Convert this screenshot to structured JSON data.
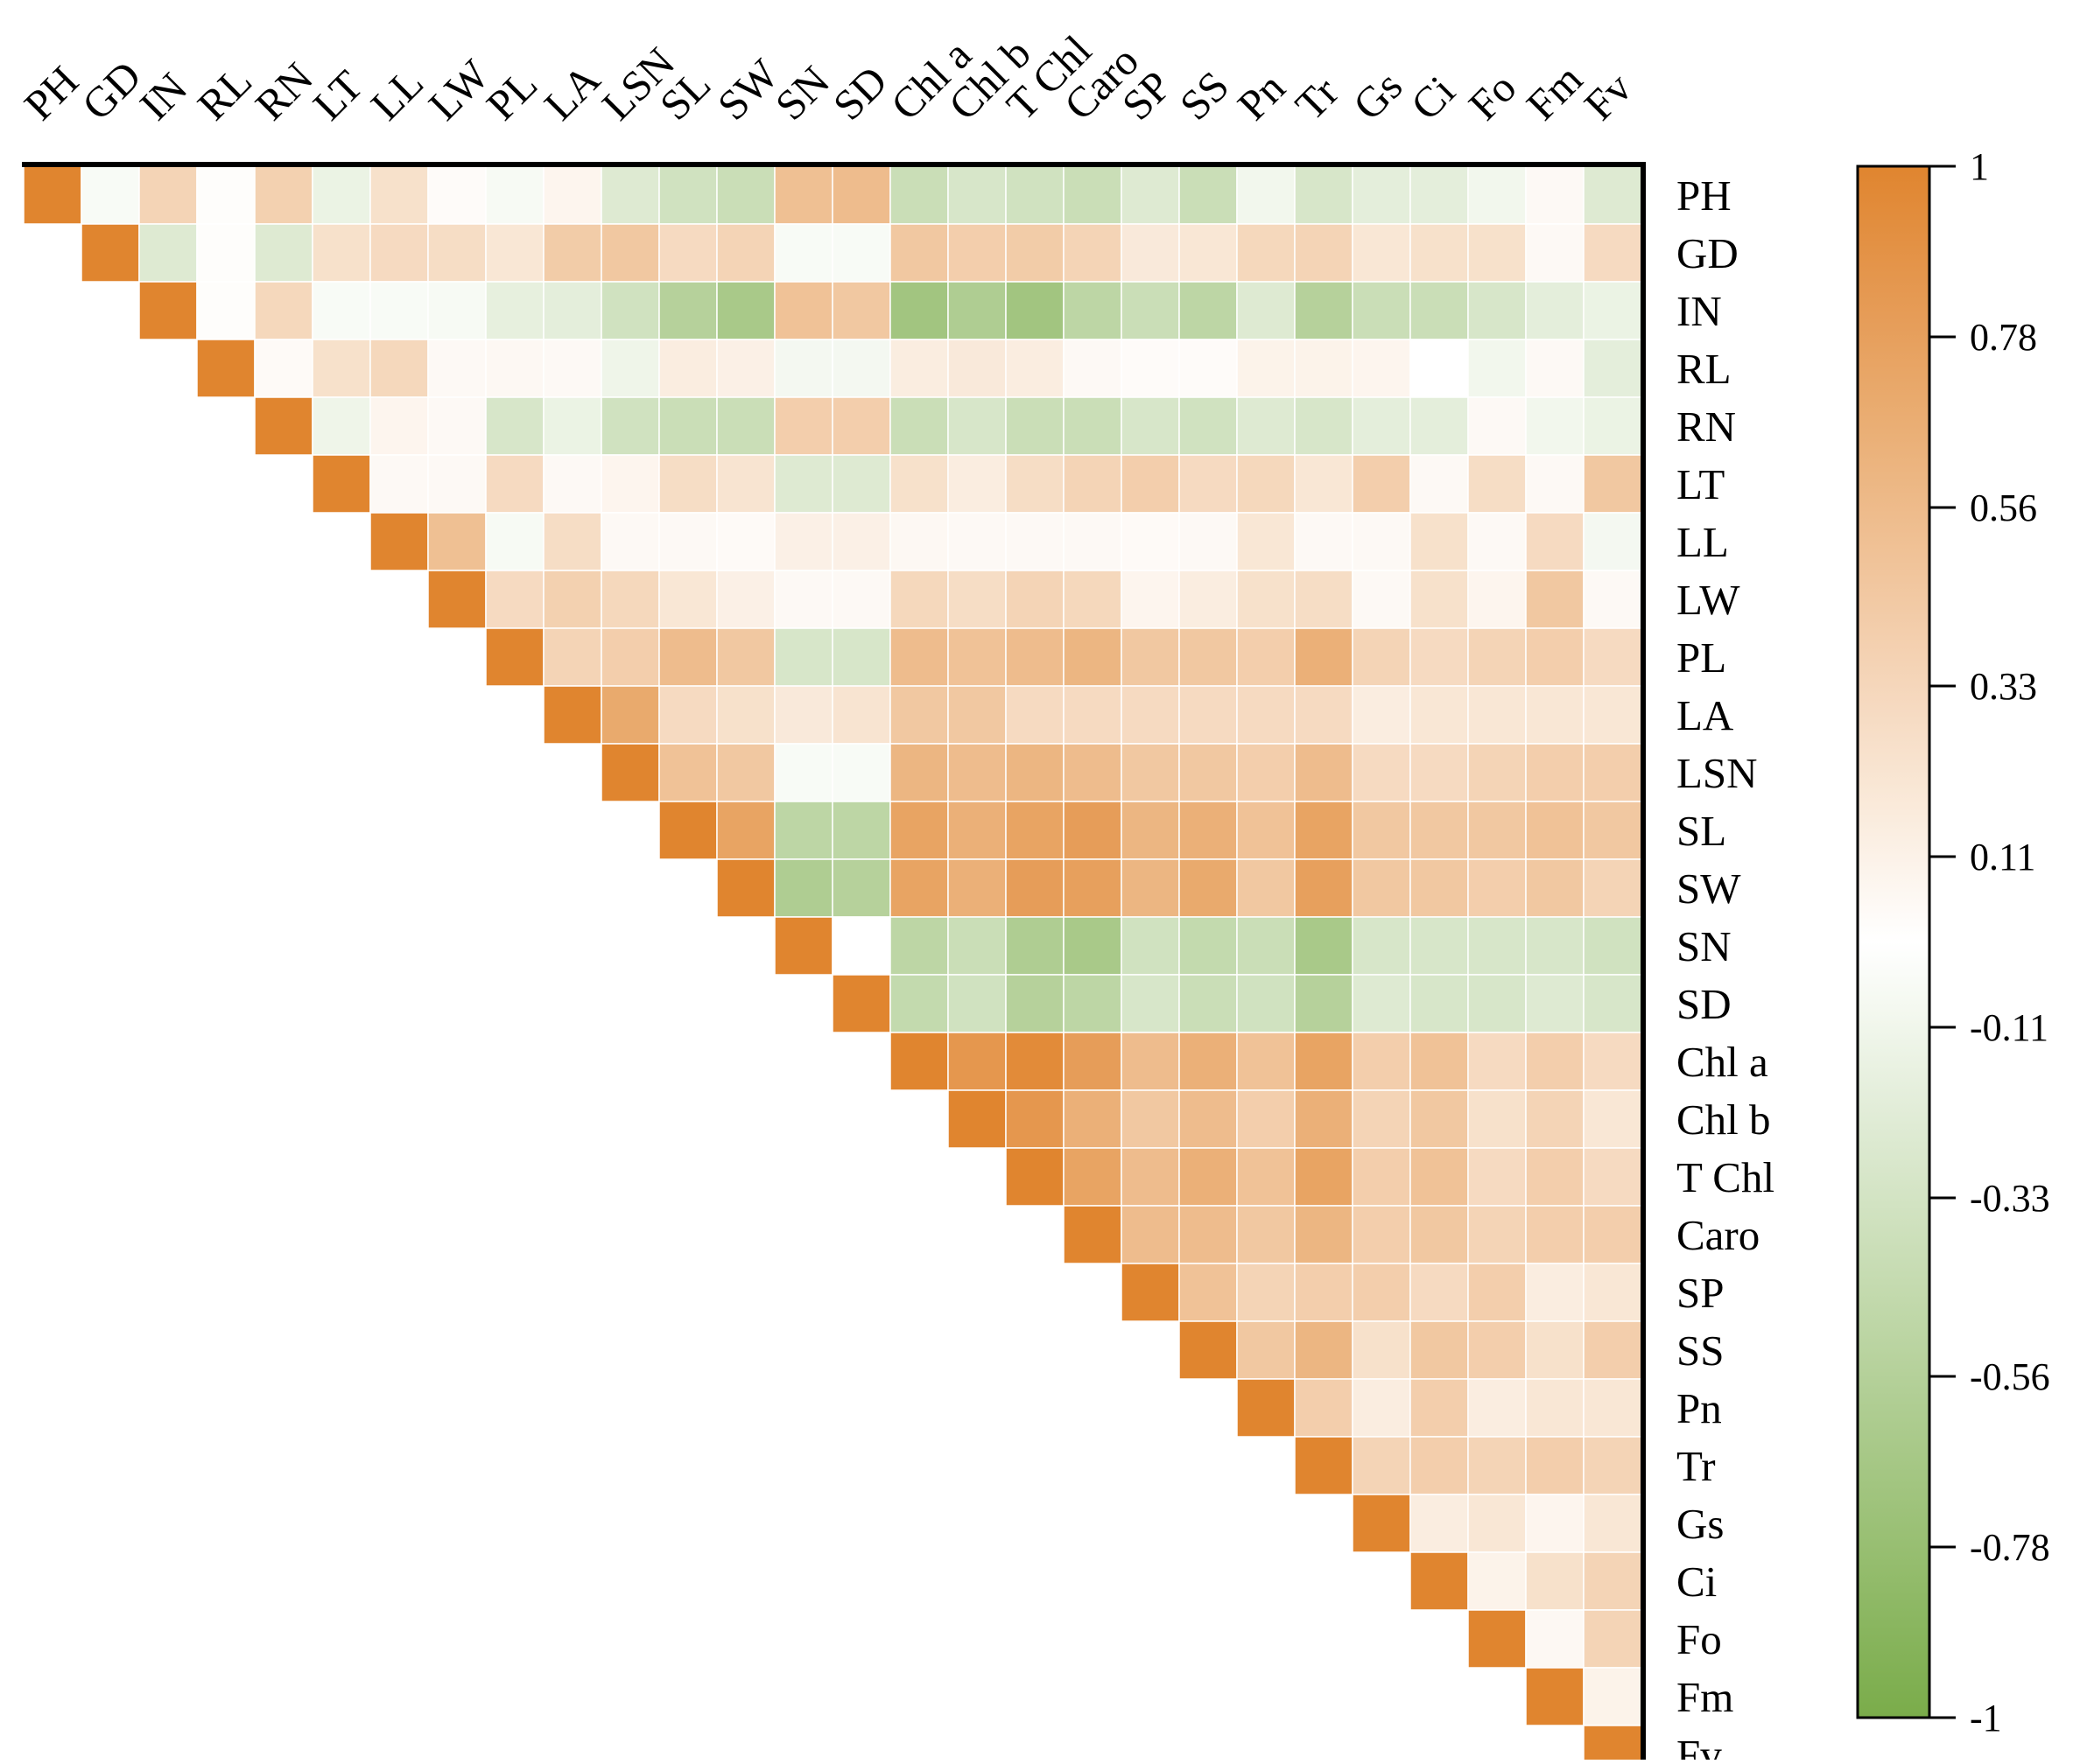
{
  "chart_data": {
    "type": "heatmap",
    "title": "",
    "variables": [
      "PH",
      "GD",
      "IN",
      "RL",
      "RN",
      "LT",
      "LL",
      "LW",
      "PL",
      "LA",
      "LSN",
      "SL",
      "SW",
      "SN",
      "SD",
      "Chl a",
      "Chl b",
      "T Chl",
      "Caro",
      "SP",
      "SS",
      "Pn",
      "Tr",
      "Gs",
      "Ci",
      "Fo",
      "Fm",
      "Fv"
    ],
    "matrix_shape": "upper-triangle",
    "values": [
      [
        1.0,
        -0.05,
        0.35,
        0.02,
        0.38,
        -0.15,
        0.25,
        0.03,
        -0.06,
        0.08,
        -0.25,
        -0.35,
        -0.4,
        0.52,
        0.55,
        -0.4,
        -0.3,
        -0.35,
        -0.4,
        -0.25,
        -0.4,
        -0.1,
        -0.3,
        -0.2,
        -0.2,
        -0.1,
        0.05,
        -0.25
      ],
      [
        null,
        1.0,
        -0.25,
        0.02,
        -0.25,
        0.25,
        0.3,
        0.28,
        0.2,
        0.42,
        0.45,
        0.3,
        0.35,
        -0.05,
        -0.05,
        0.45,
        0.4,
        0.42,
        0.35,
        0.18,
        0.2,
        0.32,
        0.35,
        0.2,
        0.25,
        0.25,
        0.05,
        0.3
      ],
      [
        null,
        null,
        1.0,
        0.02,
        0.32,
        -0.05,
        -0.05,
        -0.06,
        -0.18,
        -0.2,
        -0.35,
        -0.55,
        -0.65,
        0.5,
        0.45,
        -0.7,
        -0.6,
        -0.7,
        -0.5,
        -0.4,
        -0.5,
        -0.25,
        -0.55,
        -0.4,
        -0.4,
        -0.3,
        -0.2,
        -0.15
      ],
      [
        null,
        null,
        null,
        1.0,
        0.04,
        0.25,
        0.32,
        0.05,
        0.06,
        0.05,
        -0.12,
        0.15,
        0.12,
        -0.08,
        -0.08,
        0.15,
        0.18,
        0.15,
        0.05,
        0.03,
        0.03,
        0.1,
        0.1,
        0.08,
        0.0,
        -0.1,
        0.05,
        -0.2
      ],
      [
        null,
        null,
        null,
        null,
        1.0,
        -0.12,
        0.08,
        0.05,
        -0.3,
        -0.15,
        -0.35,
        -0.4,
        -0.4,
        0.4,
        0.4,
        -0.4,
        -0.3,
        -0.4,
        -0.4,
        -0.3,
        -0.35,
        -0.25,
        -0.3,
        -0.2,
        -0.2,
        0.05,
        -0.1,
        -0.15
      ],
      [
        null,
        null,
        null,
        null,
        null,
        1.0,
        0.05,
        0.05,
        0.3,
        0.05,
        0.08,
        0.28,
        0.22,
        -0.25,
        -0.25,
        0.25,
        0.15,
        0.28,
        0.35,
        0.4,
        0.3,
        0.32,
        0.2,
        0.4,
        0.05,
        0.28,
        0.05,
        0.45
      ],
      [
        null,
        null,
        null,
        null,
        null,
        null,
        1.0,
        0.52,
        -0.06,
        0.28,
        0.05,
        0.05,
        0.04,
        0.12,
        0.12,
        0.06,
        0.05,
        0.05,
        0.05,
        0.04,
        0.05,
        0.2,
        0.05,
        0.05,
        0.25,
        0.05,
        0.3,
        -0.08
      ],
      [
        null,
        null,
        null,
        null,
        null,
        null,
        null,
        1.0,
        0.3,
        0.38,
        0.32,
        0.2,
        0.12,
        0.05,
        0.05,
        0.32,
        0.28,
        0.35,
        0.32,
        0.08,
        0.15,
        0.25,
        0.28,
        0.05,
        0.25,
        0.08,
        0.45,
        0.05
      ],
      [
        null,
        null,
        null,
        null,
        null,
        null,
        null,
        null,
        1.0,
        0.35,
        0.4,
        0.55,
        0.45,
        -0.3,
        -0.3,
        0.55,
        0.5,
        0.55,
        0.6,
        0.45,
        0.45,
        0.4,
        0.65,
        0.35,
        0.3,
        0.35,
        0.4,
        0.3
      ],
      [
        null,
        null,
        null,
        null,
        null,
        null,
        null,
        null,
        null,
        1.0,
        0.7,
        0.3,
        0.25,
        0.18,
        0.22,
        0.45,
        0.45,
        0.3,
        0.3,
        0.3,
        0.3,
        0.3,
        0.3,
        0.15,
        0.2,
        0.2,
        0.2,
        0.2
      ],
      [
        null,
        null,
        null,
        null,
        null,
        null,
        null,
        null,
        null,
        null,
        1.0,
        0.5,
        0.45,
        -0.05,
        -0.05,
        0.6,
        0.55,
        0.6,
        0.55,
        0.45,
        0.45,
        0.4,
        0.55,
        0.3,
        0.3,
        0.35,
        0.4,
        0.4
      ],
      [
        null,
        null,
        null,
        null,
        null,
        null,
        null,
        null,
        null,
        null,
        null,
        1.0,
        0.75,
        -0.5,
        -0.5,
        0.75,
        0.65,
        0.75,
        0.8,
        0.6,
        0.65,
        0.5,
        0.75,
        0.45,
        0.45,
        0.45,
        0.5,
        0.45
      ],
      [
        null,
        null,
        null,
        null,
        null,
        null,
        null,
        null,
        null,
        null,
        null,
        null,
        1.0,
        -0.6,
        -0.55,
        0.75,
        0.65,
        0.8,
        0.78,
        0.6,
        0.7,
        0.45,
        0.78,
        0.45,
        0.45,
        0.4,
        0.45,
        0.35
      ],
      [
        null,
        null,
        null,
        null,
        null,
        null,
        null,
        null,
        null,
        null,
        null,
        null,
        null,
        1.0,
        0.0,
        -0.5,
        -0.4,
        -0.6,
        -0.65,
        -0.35,
        -0.45,
        -0.4,
        -0.65,
        -0.3,
        -0.3,
        -0.3,
        -0.3,
        -0.35
      ],
      [
        null,
        null,
        null,
        null,
        null,
        null,
        null,
        null,
        null,
        null,
        null,
        null,
        null,
        null,
        1.0,
        -0.45,
        -0.35,
        -0.55,
        -0.5,
        -0.3,
        -0.4,
        -0.35,
        -0.55,
        -0.25,
        -0.3,
        -0.3,
        -0.25,
        -0.3
      ],
      [
        null,
        null,
        null,
        null,
        null,
        null,
        null,
        null,
        null,
        null,
        null,
        null,
        null,
        null,
        null,
        1.0,
        0.85,
        0.95,
        0.8,
        0.55,
        0.65,
        0.5,
        0.75,
        0.4,
        0.5,
        0.3,
        0.4,
        0.3
      ],
      [
        null,
        null,
        null,
        null,
        null,
        null,
        null,
        null,
        null,
        null,
        null,
        null,
        null,
        null,
        null,
        null,
        1.0,
        0.85,
        0.65,
        0.45,
        0.55,
        0.4,
        0.65,
        0.35,
        0.45,
        0.25,
        0.35,
        0.2
      ],
      [
        null,
        null,
        null,
        null,
        null,
        null,
        null,
        null,
        null,
        null,
        null,
        null,
        null,
        null,
        null,
        null,
        null,
        1.0,
        0.75,
        0.55,
        0.65,
        0.5,
        0.75,
        0.4,
        0.5,
        0.3,
        0.4,
        0.3
      ],
      [
        null,
        null,
        null,
        null,
        null,
        null,
        null,
        null,
        null,
        null,
        null,
        null,
        null,
        null,
        null,
        null,
        null,
        null,
        1.0,
        0.55,
        0.55,
        0.45,
        0.6,
        0.4,
        0.45,
        0.35,
        0.4,
        0.4
      ],
      [
        null,
        null,
        null,
        null,
        null,
        null,
        null,
        null,
        null,
        null,
        null,
        null,
        null,
        null,
        null,
        null,
        null,
        null,
        null,
        1.0,
        0.5,
        0.35,
        0.4,
        0.4,
        0.3,
        0.4,
        0.15,
        0.2
      ],
      [
        null,
        null,
        null,
        null,
        null,
        null,
        null,
        null,
        null,
        null,
        null,
        null,
        null,
        null,
        null,
        null,
        null,
        null,
        null,
        null,
        1.0,
        0.45,
        0.6,
        0.25,
        0.45,
        0.4,
        0.25,
        0.4
      ],
      [
        null,
        null,
        null,
        null,
        null,
        null,
        null,
        null,
        null,
        null,
        null,
        null,
        null,
        null,
        null,
        null,
        null,
        null,
        null,
        null,
        null,
        1.0,
        0.4,
        0.15,
        0.4,
        0.15,
        0.2,
        0.2
      ],
      [
        null,
        null,
        null,
        null,
        null,
        null,
        null,
        null,
        null,
        null,
        null,
        null,
        null,
        null,
        null,
        null,
        null,
        null,
        null,
        null,
        null,
        null,
        1.0,
        0.35,
        0.4,
        0.35,
        0.4,
        0.35
      ],
      [
        null,
        null,
        null,
        null,
        null,
        null,
        null,
        null,
        null,
        null,
        null,
        null,
        null,
        null,
        null,
        null,
        null,
        null,
        null,
        null,
        null,
        null,
        null,
        1.0,
        0.15,
        0.2,
        0.08,
        0.2
      ],
      [
        null,
        null,
        null,
        null,
        null,
        null,
        null,
        null,
        null,
        null,
        null,
        null,
        null,
        null,
        null,
        null,
        null,
        null,
        null,
        null,
        null,
        null,
        null,
        null,
        1.0,
        0.1,
        0.25,
        0.35
      ],
      [
        null,
        null,
        null,
        null,
        null,
        null,
        null,
        null,
        null,
        null,
        null,
        null,
        null,
        null,
        null,
        null,
        null,
        null,
        null,
        null,
        null,
        null,
        null,
        null,
        null,
        1.0,
        0.06,
        0.35
      ],
      [
        null,
        null,
        null,
        null,
        null,
        null,
        null,
        null,
        null,
        null,
        null,
        null,
        null,
        null,
        null,
        null,
        null,
        null,
        null,
        null,
        null,
        null,
        null,
        null,
        null,
        null,
        1.0,
        0.1
      ],
      [
        null,
        null,
        null,
        null,
        null,
        null,
        null,
        null,
        null,
        null,
        null,
        null,
        null,
        null,
        null,
        null,
        null,
        null,
        null,
        null,
        null,
        null,
        null,
        null,
        null,
        null,
        null,
        1.0
      ]
    ],
    "colorbar": {
      "min": -1,
      "max": 1,
      "ticks": [
        1,
        0.78,
        0.56,
        0.33,
        0.11,
        -0.11,
        -0.33,
        -0.56,
        -0.78,
        -1
      ],
      "tick_labels": [
        "1",
        "0.78",
        "0.56",
        "0.33",
        "0.11",
        "-0.11",
        "-0.33",
        "-0.56",
        "-0.78",
        "-1"
      ],
      "colors": {
        "negative": "#7aac4a",
        "zero": "#ffffff",
        "positive": "#e0852f"
      }
    }
  }
}
